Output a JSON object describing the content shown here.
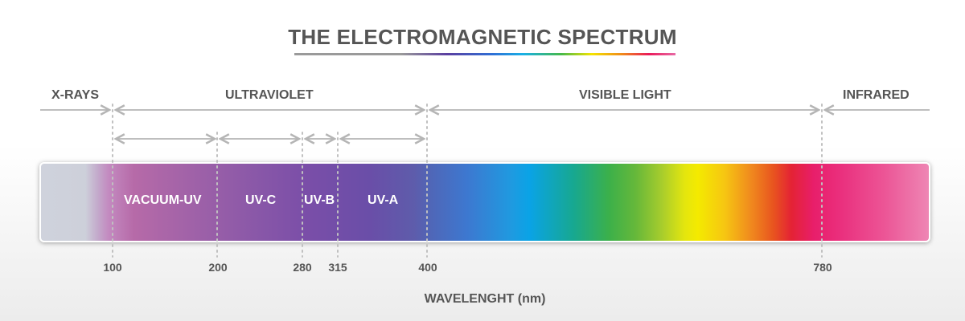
{
  "title": "THE ELECTROMAGNETIC SPECTRUM",
  "regions": {
    "xrays": "X-RAYS",
    "ultraviolet": "ULTRAVIOLET",
    "visible": "VISIBLE LIGHT",
    "infrared": "INFRARED"
  },
  "uv_bands": {
    "vacuum_uv": "VACUUM-UV",
    "uv_c": "UV-C",
    "uv_b": "UV-B",
    "uv_a": "UV-A"
  },
  "ticks": {
    "t100": "100",
    "t200": "200",
    "t280": "280",
    "t315": "315",
    "t400": "400",
    "t780": "780"
  },
  "axis_label": "WAVELENGHT (nm)",
  "colors": {
    "text": "#555555",
    "guide": "#b5b5b5"
  }
}
